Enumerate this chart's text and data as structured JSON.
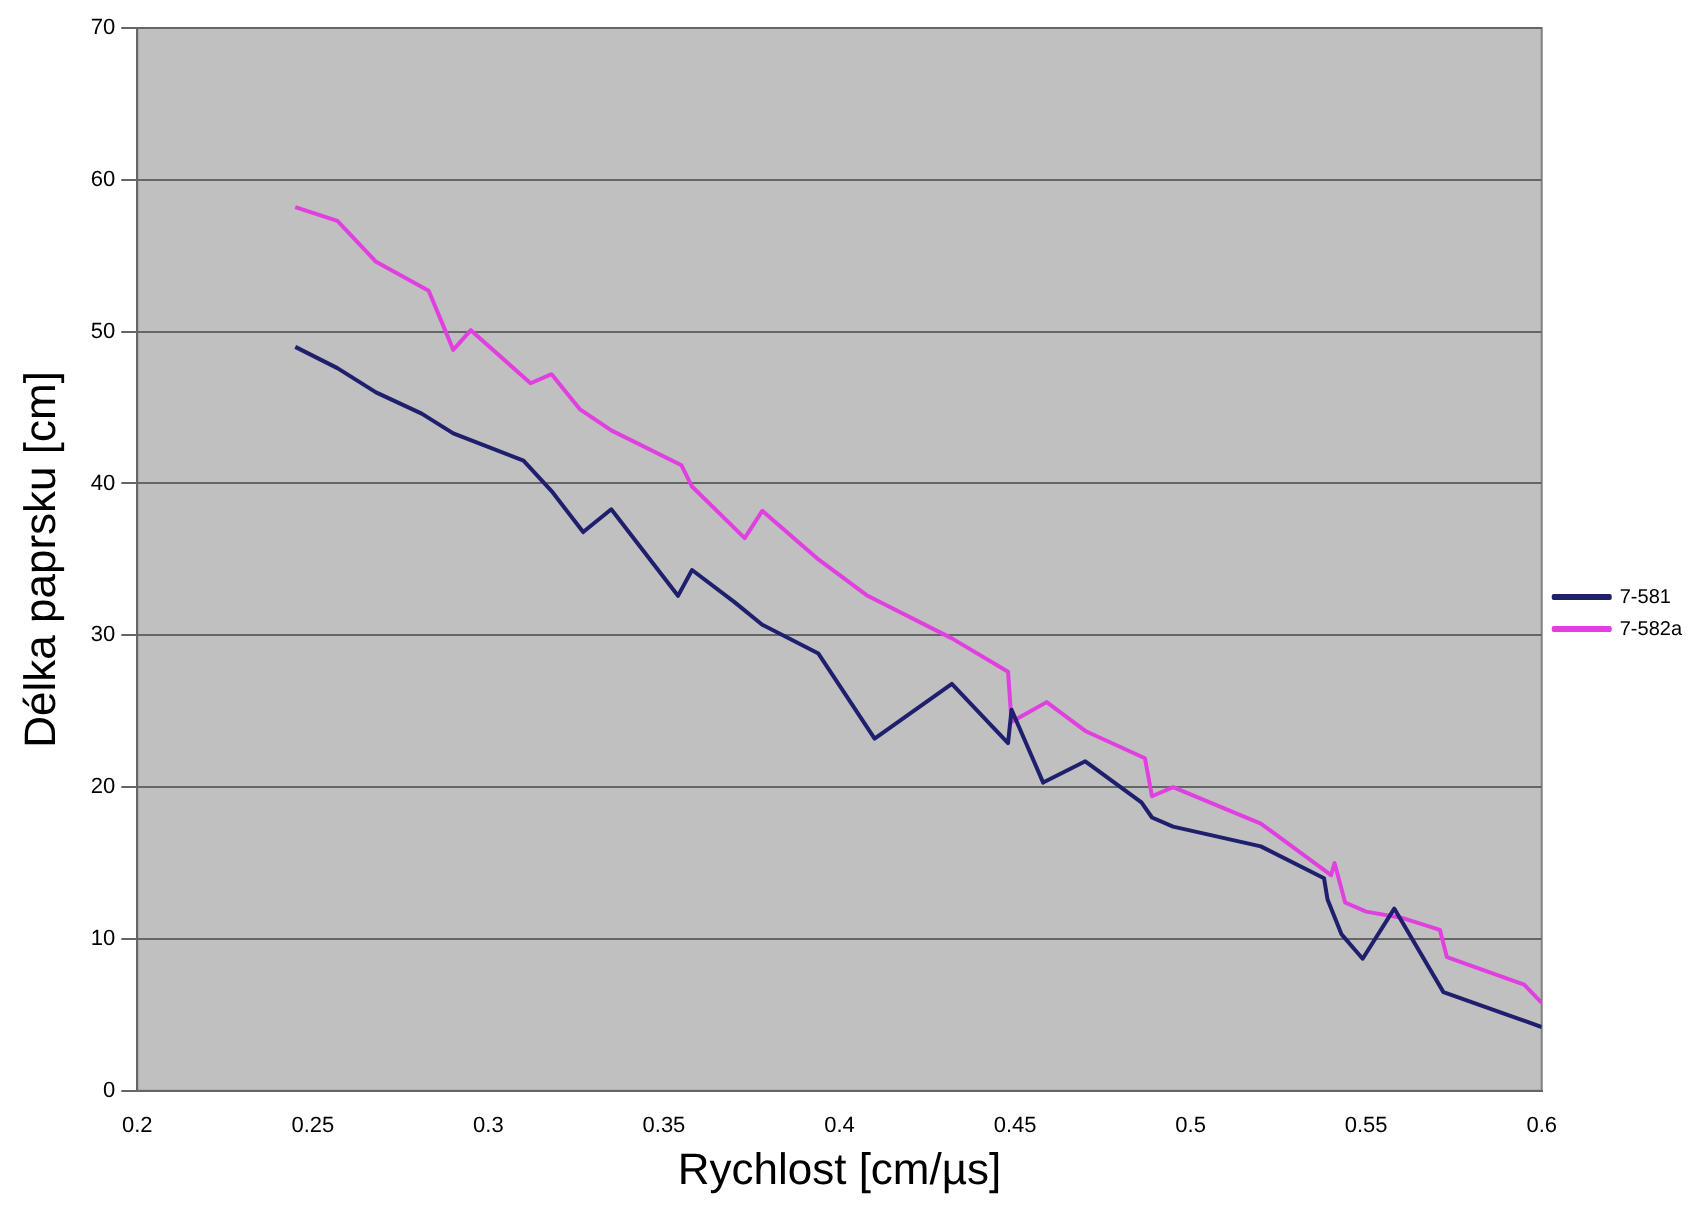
{
  "chart_data": {
    "type": "line",
    "xlabel": "Rychlost [cm/µs]",
    "ylabel": "Délka paprsku [cm]",
    "xlim": [
      0.2,
      0.6
    ],
    "xticks": [
      0.2,
      0.25,
      0.3,
      0.35,
      0.4,
      0.45,
      0.5,
      0.55,
      0.6
    ],
    "ylim": [
      0,
      70
    ],
    "yticks": [
      0,
      10,
      20,
      30,
      40,
      50,
      60,
      70
    ],
    "grid": "y",
    "legend": "right",
    "marker": "none",
    "line_style": "solid",
    "series": [
      {
        "name": "7-581",
        "color": "#1f1f6e",
        "x": [
          0.245,
          0.257,
          0.268,
          0.281,
          0.29,
          0.31,
          0.318,
          0.327,
          0.335,
          0.354,
          0.358,
          0.37,
          0.378,
          0.394,
          0.41,
          0.432,
          0.448,
          0.449,
          0.458,
          0.47,
          0.486,
          0.489,
          0.495,
          0.52,
          0.538,
          0.539,
          0.543,
          0.549,
          0.558,
          0.572,
          0.6
        ],
        "values": [
          49,
          47.6,
          46,
          44.6,
          43.3,
          41.5,
          39.5,
          36.8,
          38.3,
          32.6,
          34.3,
          32.2,
          30.7,
          28.8,
          23.2,
          26.8,
          22.9,
          25.1,
          20.3,
          21.7,
          19,
          18,
          17.4,
          16.1,
          14,
          12.6,
          10.3,
          8.7,
          12,
          6.5,
          4.2
        ]
      },
      {
        "name": "7-582a",
        "color": "#e040e0",
        "x": [
          0.245,
          0.257,
          0.268,
          0.283,
          0.29,
          0.295,
          0.312,
          0.318,
          0.326,
          0.335,
          0.355,
          0.358,
          0.373,
          0.378,
          0.394,
          0.408,
          0.432,
          0.448,
          0.449,
          0.459,
          0.47,
          0.487,
          0.489,
          0.495,
          0.52,
          0.54,
          0.541,
          0.544,
          0.55,
          0.56,
          0.571,
          0.573,
          0.595,
          0.6
        ],
        "values": [
          58.2,
          57.3,
          54.6,
          52.7,
          48.8,
          50.1,
          46.6,
          47.2,
          44.9,
          43.5,
          41.2,
          39.8,
          36.4,
          38.2,
          35,
          32.6,
          29.8,
          27.6,
          24.3,
          25.6,
          23.7,
          21.9,
          19.4,
          20,
          17.6,
          14.2,
          15,
          12.4,
          11.8,
          11.4,
          10.6,
          8.8,
          7,
          5.8
        ]
      }
    ]
  }
}
